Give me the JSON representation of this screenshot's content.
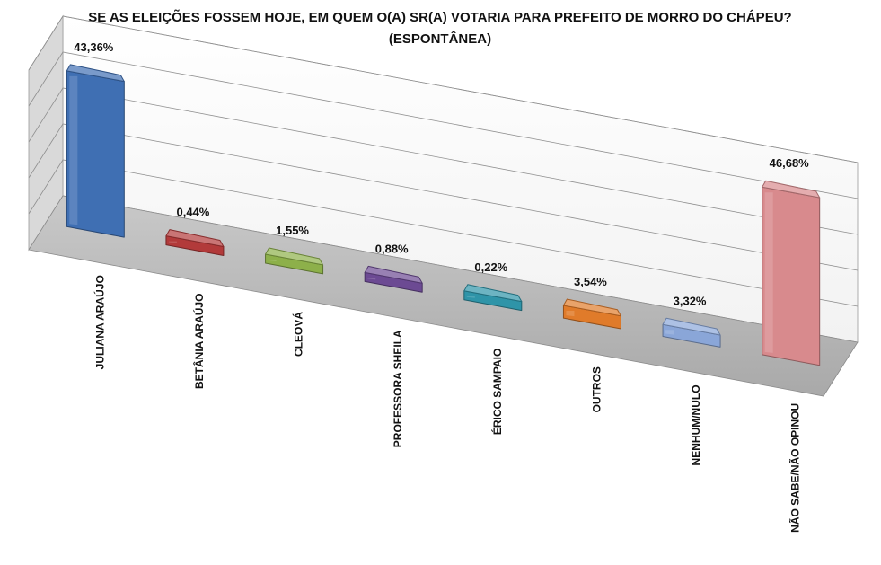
{
  "chart_data": {
    "type": "bar",
    "title": "SE AS ELEIÇÕES FOSSEM HOJE, EM QUEM O(A) SR(A) VOTARIA PARA PREFEITO DE MORRO DO CHÁPEU? (ESPONTÂNEA)",
    "categories": [
      "JULIANA ARAÚJO",
      "BETÂNIA ARAÚJO",
      "CLEOVÁ",
      "PROFESSORA SHEILA",
      "ÉRICO SAMPAIO",
      "OUTROS",
      "NENHUM/NULO",
      "NÃO SABE/NÃO OPINOU"
    ],
    "values": [
      43.36,
      0.44,
      1.55,
      0.88,
      0.22,
      3.54,
      3.32,
      46.68
    ],
    "value_labels": [
      "43,36%",
      "0,44%",
      "1,55%",
      "0,88%",
      "0,22%",
      "3,54%",
      "3,32%",
      "46,68%"
    ],
    "colors": [
      "#3f6fb3",
      "#b23a3a",
      "#8db04a",
      "#6c4a93",
      "#2f94a8",
      "#e07b2a",
      "#8aa6d8",
      "#d88a8d"
    ],
    "ylim": [
      0,
      50
    ],
    "grid": true,
    "legend": "none"
  }
}
